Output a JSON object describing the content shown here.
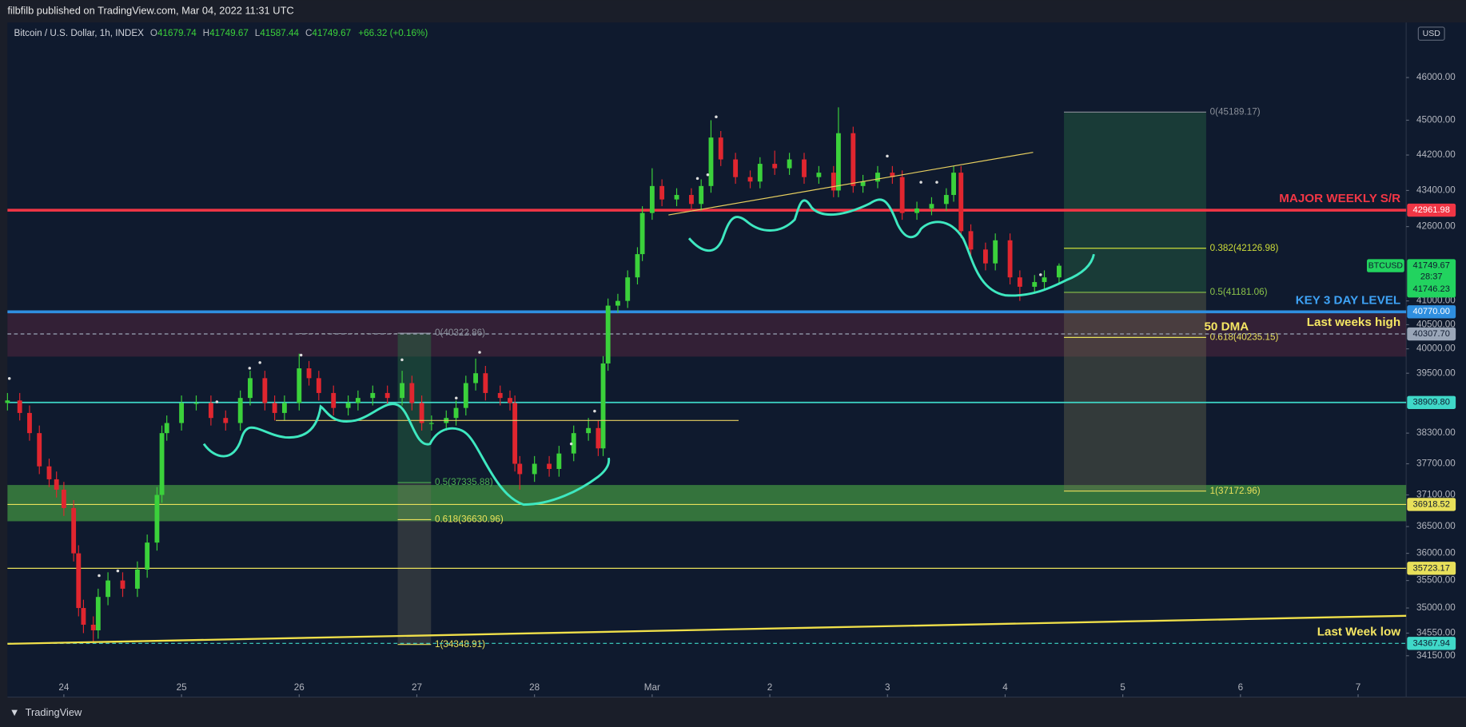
{
  "header": {
    "published": "filbfilb published on TradingView.com, Mar 04, 2022 11:31 UTC",
    "symbol": "Bitcoin / U.S. Dollar, 1h, INDEX",
    "ohlc": [
      {
        "key": "O",
        "value": "41679.74"
      },
      {
        "key": "H",
        "value": "41749.67"
      },
      {
        "key": "L",
        "value": "41587.44"
      },
      {
        "key": "C",
        "value": "41749.67"
      }
    ],
    "change": "+66.32 (+0.16%)"
  },
  "footer": {
    "brand": "TradingView"
  },
  "chart_data": {
    "type": "candlestick",
    "currency": "USD",
    "log": true,
    "up_color": "#3bd13b",
    "down_color": "#e0262f",
    "xlim": [
      -11.5,
      273.8
    ],
    "xticks": [
      {
        "value": 0,
        "label": "24"
      },
      {
        "value": 24,
        "label": "25"
      },
      {
        "value": 48,
        "label": "26"
      },
      {
        "value": 72,
        "label": "27"
      },
      {
        "value": 96,
        "label": "28"
      },
      {
        "value": 120,
        "label": "Mar"
      },
      {
        "value": 144,
        "label": "2"
      },
      {
        "value": 168,
        "label": "3"
      },
      {
        "value": 192,
        "label": "4"
      },
      {
        "value": 216,
        "label": "5"
      },
      {
        "value": 240,
        "label": "6"
      },
      {
        "value": 264,
        "label": "7"
      }
    ],
    "ylim": [
      33430,
      47325
    ],
    "yticks": [
      {
        "value": 46000,
        "label": "46000.00"
      },
      {
        "value": 45000,
        "label": "45000.00"
      },
      {
        "value": 44200,
        "label": "44200.00"
      },
      {
        "value": 43400,
        "label": "43400.00"
      },
      {
        "value": 42600,
        "label": "42600.00"
      },
      {
        "value": 41000,
        "label": "41000.00"
      },
      {
        "value": 40500,
        "label": "40500.00"
      },
      {
        "value": 40000,
        "label": "40000.00"
      },
      {
        "value": 39500,
        "label": "39500.00"
      },
      {
        "value": 38300,
        "label": "38300.00"
      },
      {
        "value": 37700,
        "label": "37700.00"
      },
      {
        "value": 37100,
        "label": "37100.00"
      },
      {
        "value": 36500,
        "label": "36500.00"
      },
      {
        "value": 36000,
        "label": "36000.00"
      },
      {
        "value": 35500,
        "label": "35500.00"
      },
      {
        "value": 35000,
        "label": "35000.00"
      },
      {
        "value": 34550,
        "label": "34550.00"
      },
      {
        "value": 34150,
        "label": "34150.00"
      }
    ],
    "x": [
      -11.5,
      -9,
      -7,
      -5,
      -3,
      -1.5,
      0,
      2,
      3,
      4,
      6,
      7,
      9,
      12,
      15,
      17,
      19,
      20,
      21,
      24,
      27,
      30,
      33,
      36,
      38,
      41,
      43,
      45,
      48,
      50,
      52,
      55,
      58,
      60,
      63,
      66,
      69,
      71,
      73,
      75,
      78,
      80,
      82,
      84,
      86,
      89,
      91,
      92,
      93,
      96,
      99,
      101,
      104,
      107,
      109,
      110,
      111,
      113,
      115,
      117,
      118,
      120,
      122,
      125,
      128,
      130,
      132,
      134,
      137,
      140,
      142,
      145,
      148,
      151,
      154,
      157,
      158,
      161,
      163,
      166,
      169,
      171,
      174,
      177,
      180,
      181.5,
      183,
      185,
      188,
      190,
      193,
      195,
      198,
      200,
      203
    ],
    "open": [
      38900,
      38950,
      38700,
      38300,
      37650,
      37400,
      37200,
      36850,
      36000,
      35000,
      34700,
      34600,
      35200,
      35500,
      35350,
      35700,
      36200,
      37100,
      38300,
      38500,
      38900,
      38900,
      38600,
      38500,
      39000,
      39400,
      38900,
      38700,
      38900,
      39600,
      39400,
      39100,
      38800,
      38900,
      39000,
      39100,
      39000,
      39300,
      38900,
      38500,
      38500,
      38600,
      38800,
      39300,
      39500,
      39100,
      39000,
      38900,
      37700,
      37500,
      37700,
      37600,
      37900,
      38300,
      38400,
      38000,
      39700,
      40900,
      41000,
      41500,
      42000,
      42900,
      43500,
      43200,
      43300,
      43100,
      43500,
      44600,
      44100,
      43700,
      43600,
      44000,
      43900,
      44100,
      43700,
      43800,
      43400,
      44700,
      43500,
      43600,
      43800,
      43700,
      42900,
      43000,
      43100,
      43300,
      43800,
      42500,
      42100,
      41800,
      42300,
      41500,
      41300,
      41400,
      41500
    ],
    "high": [
      39100,
      39100,
      38850,
      38450,
      37800,
      37550,
      37350,
      37000,
      36150,
      35150,
      34850,
      35350,
      35650,
      35650,
      35850,
      36350,
      37250,
      38450,
      38650,
      39050,
      39050,
      39050,
      38750,
      39150,
      39550,
      39550,
      39050,
      39050,
      39900,
      39750,
      39550,
      39250,
      39050,
      39150,
      39250,
      39250,
      39550,
      39450,
      39050,
      38650,
      38750,
      38950,
      39450,
      39800,
      39650,
      39250,
      39150,
      39050,
      37850,
      37850,
      37850,
      38050,
      38450,
      38600,
      38550,
      39850,
      41050,
      41150,
      41650,
      42150,
      43050,
      43900,
      43650,
      43450,
      43450,
      43650,
      45000,
      44750,
      44250,
      43850,
      44150,
      44300,
      44250,
      44250,
      43950,
      43950,
      45300,
      44850,
      43750,
      43950,
      43950,
      43850,
      43150,
      43250,
      43450,
      43950,
      43950,
      42650,
      42250,
      42450,
      42450,
      41650,
      41550,
      41650,
      41800
    ],
    "low": [
      38750,
      38550,
      38150,
      37500,
      37250,
      37050,
      36700,
      35850,
      34850,
      34550,
      34400,
      34450,
      35050,
      35200,
      35200,
      35550,
      36050,
      36950,
      38150,
      38350,
      38750,
      38450,
      38350,
      38350,
      38850,
      38750,
      38550,
      38550,
      38750,
      39250,
      38950,
      38650,
      38650,
      38750,
      38850,
      38850,
      38850,
      38750,
      38350,
      38350,
      38350,
      38450,
      38650,
      39150,
      38950,
      38850,
      38750,
      37550,
      37200,
      37350,
      37450,
      37450,
      37750,
      38150,
      37850,
      37850,
      39550,
      40750,
      40850,
      41350,
      41850,
      42750,
      43050,
      43050,
      42950,
      42950,
      43350,
      43950,
      43550,
      43450,
      43450,
      43750,
      43750,
      43550,
      43550,
      43250,
      43250,
      43350,
      43350,
      43450,
      43550,
      42750,
      42750,
      42850,
      42950,
      43150,
      42350,
      41950,
      41650,
      41650,
      41350,
      41000,
      41150,
      41250,
      41350
    ],
    "close": [
      38950,
      38700,
      38300,
      37650,
      37400,
      37200,
      36850,
      36000,
      35000,
      34700,
      34600,
      35200,
      35500,
      35350,
      35700,
      36200,
      37100,
      38300,
      38500,
      38900,
      38900,
      38600,
      38500,
      39000,
      39400,
      38900,
      38700,
      38900,
      39600,
      39400,
      39100,
      38800,
      38900,
      39000,
      39100,
      39000,
      39300,
      38900,
      38500,
      38500,
      38600,
      38800,
      39300,
      39500,
      39100,
      39000,
      38900,
      37700,
      37500,
      37700,
      37600,
      37900,
      38300,
      38400,
      38000,
      39700,
      40900,
      41000,
      41500,
      42000,
      42900,
      43500,
      43200,
      43300,
      43100,
      43500,
      44600,
      44100,
      43700,
      43600,
      44000,
      43900,
      44100,
      43700,
      43800,
      43400,
      44700,
      43500,
      43600,
      43800,
      43700,
      42900,
      43000,
      43100,
      43300,
      43800,
      42500,
      42100,
      41800,
      42300,
      41500,
      41300,
      41400,
      41500,
      41750
    ],
    "zones": [
      {
        "from": 37290,
        "to": 36600,
        "color": "rgba(67,150,67,0.72)"
      },
      {
        "from": 40770,
        "to": 39840,
        "color": "rgba(96,40,64,0.45)"
      }
    ],
    "fibs": [
      {
        "x": [
          68.1,
          74.9
        ],
        "band_colors": [
          "rgba(40,120,70,0.4)",
          "rgba(110,110,90,0.35)",
          "rgba(110,110,90,0.35)"
        ],
        "levels": [
          {
            "value": 40322.86,
            "label": "0(40322.86)",
            "color": "#8a8f99"
          },
          {
            "value": 37335.88,
            "label": "0.5(37335.88)",
            "color": "#4caf50"
          },
          {
            "value": 36630.96,
            "label": "0.618(36630.96)",
            "color": "#e8e05a"
          },
          {
            "value": 34348.91,
            "label": "1(34348.91)",
            "color": "#e8e05a"
          }
        ]
      },
      {
        "x": [
          204,
          233
        ],
        "band_colors": [
          "rgba(40,110,70,0.4)",
          "rgba(40,110,70,0.4)",
          "rgba(110,110,80,0.38)",
          "rgba(110,110,80,0.38)"
        ],
        "levels": [
          {
            "value": 45189.17,
            "label": "0(45189.17)",
            "color": "#8a8f99"
          },
          {
            "value": 42126.98,
            "label": "0.382(42126.98)",
            "color": "#cddc39"
          },
          {
            "value": 41181.06,
            "label": "0.5(41181.06)",
            "color": "#8bc34a"
          },
          {
            "value": 40235.15,
            "label": "0.618(40235.15)",
            "color": "#e8e05a"
          },
          {
            "value": 37172.96,
            "label": "1(37172.96)",
            "color": "#e8e05a"
          }
        ]
      }
    ],
    "levels": [
      {
        "value": 42961.98,
        "tag": "42961.98",
        "color": "#f23645",
        "tag_text_color": "#ffffff",
        "width": 3,
        "note": "MAJOR WEEKLY S/R",
        "note_color": "#f23645"
      },
      {
        "value": 40770,
        "tag": "40770.00",
        "color": "#2f8fe0",
        "tag_text_color": "#ffffff",
        "width": 3,
        "note": "KEY 3 DAY LEVEL",
        "note_color": "#3ea2f5"
      },
      {
        "value": 40307.7,
        "tag": "40307.70",
        "color": "#9aa6b8",
        "tag_text_color": "#0f1a2e",
        "width": 1,
        "dashed": true,
        "note": "Last weeks high",
        "note_color": "#f5e663"
      },
      {
        "value": 38909.8,
        "tag": "38909.80",
        "color": "#3fd8c8",
        "tag_text_color": "#0f1a2e",
        "width": 1.5
      },
      {
        "value": 36918.52,
        "tag": "36918.52",
        "color": "#e8e05a",
        "tag_text_color": "#0f1a2e",
        "width": 1
      },
      {
        "value": 35723.17,
        "tag": "35723.17",
        "color": "#e8e05a",
        "tag_text_color": "#0f1a2e",
        "width": 1
      },
      {
        "value": 34367.94,
        "tag": "34367.94",
        "color": "#3fd8c8",
        "tag_text_color": "#0f1a2e",
        "width": 1,
        "dashed": true,
        "note": "Last Week low",
        "note_color": "#f5e663"
      }
    ],
    "annotations": [
      "50 DMA"
    ],
    "last": {
      "symbol": "BTCUSD",
      "price": 41749.67,
      "countdown": "28:37",
      "bid": 41746.23,
      "color": "#22d35f"
    }
  }
}
